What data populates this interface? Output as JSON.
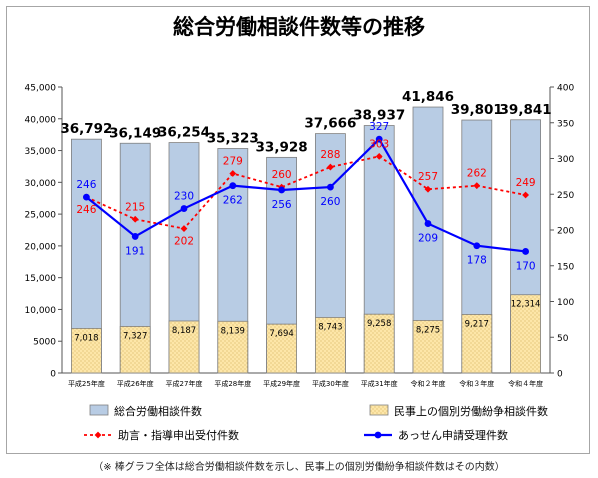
{
  "chart_data": {
    "type": "bar",
    "title": "総合労働相談件数等の推移",
    "categories": [
      "平成25年度",
      "平成26年度",
      "平成27年度",
      "平成28年度",
      "平成29年度",
      "平成30年度",
      "平成31年度",
      "令和２年度",
      "令和３年度",
      "令和４年度"
    ],
    "left_axis": {
      "ylim": [
        0,
        45000
      ],
      "ticks": [
        "0",
        "5000",
        "10,000",
        "15,000",
        "20,000",
        "25,000",
        "30,000",
        "35,000",
        "40,000",
        "45,000"
      ]
    },
    "right_axis": {
      "ylim": [
        0,
        400
      ],
      "ticks": [
        "0",
        "50",
        "100",
        "150",
        "200",
        "250",
        "300",
        "350",
        "400"
      ]
    },
    "series": [
      {
        "name": "総合労働相談件数",
        "type": "bar",
        "axis": "left",
        "color": "#b8cce4",
        "values": [
          36792,
          36149,
          36254,
          35323,
          33928,
          37666,
          38937,
          41846,
          39801,
          39841
        ],
        "labels": [
          "36,792",
          "36,149",
          "36,254",
          "35,323",
          "33,928",
          "37,666",
          "38,937",
          "41,846",
          "39,801",
          "39,841"
        ]
      },
      {
        "name": "民事上の個別労働紛争相談件数",
        "type": "bar",
        "axis": "left",
        "color": "#fde6a8",
        "values": [
          7018,
          7327,
          8187,
          8139,
          7694,
          8743,
          9258,
          8275,
          9217,
          12314
        ],
        "labels": [
          "7,018",
          "7,327",
          "8,187",
          "8,139",
          "7,694",
          "8,743",
          "9,258",
          "8,275",
          "9,217",
          "12,314"
        ]
      },
      {
        "name": "助言・指導申出受付件数",
        "type": "line",
        "axis": "right",
        "color": "#ff0000",
        "values": [
          246,
          215,
          202,
          279,
          260,
          288,
          303,
          257,
          262,
          249
        ],
        "labels": [
          "246",
          "215",
          "202",
          "279",
          "260",
          "288",
          "303",
          "257",
          "262",
          "249"
        ]
      },
      {
        "name": "あっせん申請受理件数",
        "type": "line",
        "axis": "right",
        "color": "#0000ff",
        "values": [
          246,
          191,
          230,
          262,
          256,
          260,
          327,
          209,
          178,
          170
        ],
        "labels": [
          "246",
          "191",
          "230",
          "262",
          "256",
          "260",
          "327",
          "209",
          "178",
          "170"
        ]
      }
    ],
    "legend_position": "bottom",
    "grid": false
  },
  "footnote": "（※ 棒グラフ全体は総合労働相談件数を示し、民事上の個別労働紛争相談件数はその内数）"
}
